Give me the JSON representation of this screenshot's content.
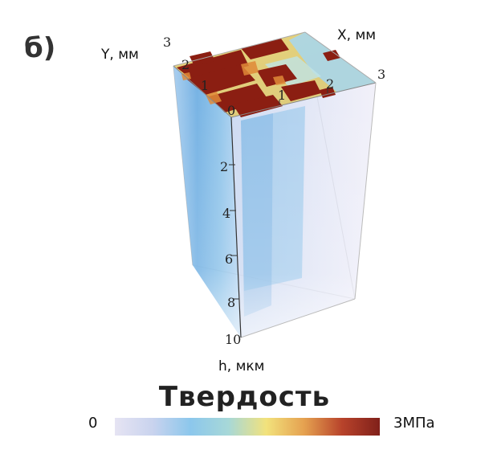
{
  "panel_label": "б)",
  "axes": {
    "x_label": "X, мм",
    "y_label": "Y, мм",
    "h_label": "h, мкм",
    "x_ticks": [
      "1",
      "2",
      "3"
    ],
    "y_ticks": [
      "1",
      "2",
      "3"
    ],
    "h_ticks": [
      "0",
      "2",
      "4",
      "6",
      "8",
      "10"
    ]
  },
  "legend": {
    "title": "Твердость",
    "min_label": "0",
    "max_label": "3МПа",
    "colors": [
      "#e6e4f3",
      "#c9d3ee",
      "#8cc7ec",
      "#a7d8d8",
      "#f2e27c",
      "#e5a150",
      "#b8432b",
      "#80201a"
    ]
  },
  "colors": {
    "top_hot": "#8b1e12",
    "body_blue": "#7db4e3",
    "body_pale": "#dfe0f3"
  }
}
